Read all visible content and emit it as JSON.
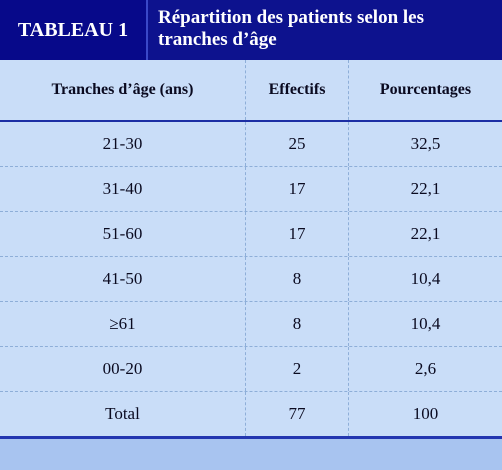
{
  "header": {
    "badge": "TABLEAU 1",
    "title_line1": "Répartition des patients selon les",
    "title_line2": "tranches d’âge"
  },
  "table": {
    "columns": [
      "Tranches d’âge (ans)",
      "Effectifs",
      "Pourcentages"
    ],
    "rows": [
      [
        "21-30",
        "25",
        "32,5"
      ],
      [
        "31-40",
        "17",
        "22,1"
      ],
      [
        "51-60",
        "17",
        "22,1"
      ],
      [
        "41-50",
        "8",
        "10,4"
      ],
      [
        "≥61",
        "8",
        "10,4"
      ],
      [
        "00-20",
        "2",
        "2,6"
      ],
      [
        "Total",
        "77",
        "100"
      ]
    ]
  },
  "colors": {
    "header_bg": "#0b0f8a",
    "table_bg": "#c9ddf8",
    "rule": "#2336b0"
  }
}
